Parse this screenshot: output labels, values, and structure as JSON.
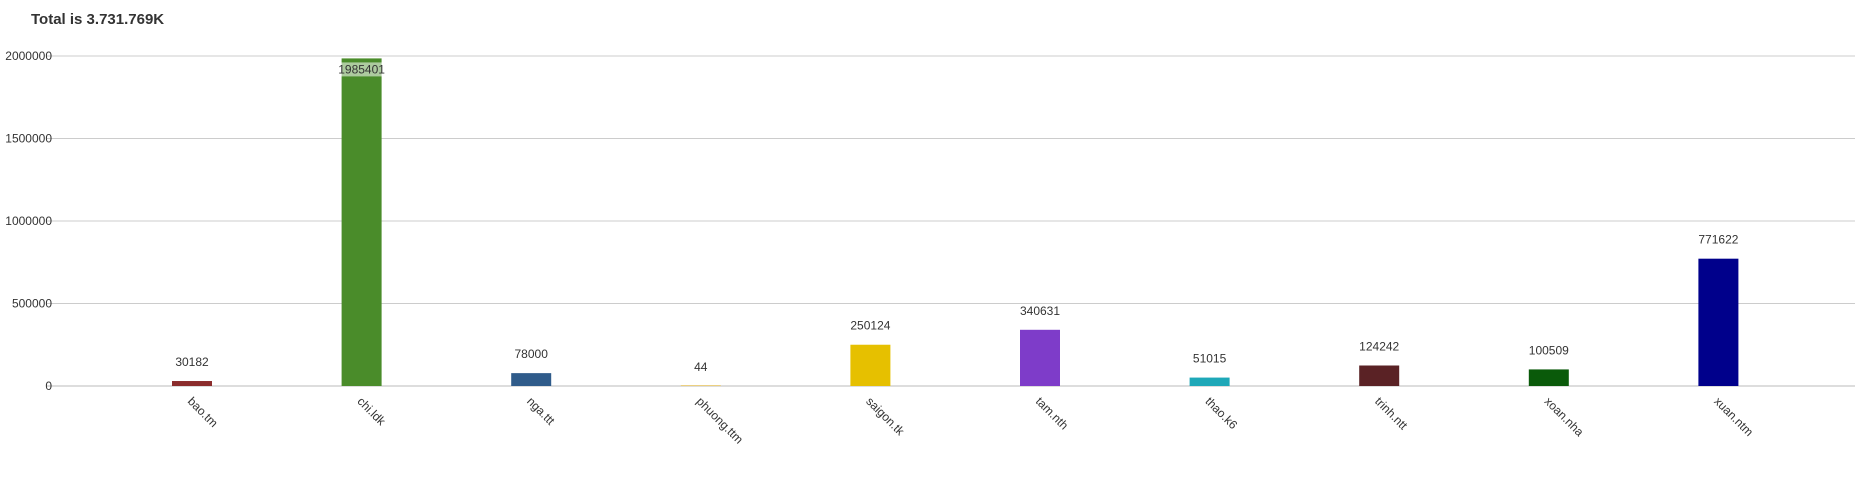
{
  "title": "Total is 3.731.769K",
  "chart_data": {
    "type": "bar",
    "title": "Total is 3.731.769K",
    "xlabel": "",
    "ylabel": "",
    "ylim": [
      0,
      2000000
    ],
    "yticks": [
      0,
      500000,
      1000000,
      1500000,
      2000000
    ],
    "grid": true,
    "categories": [
      "bao.tm",
      "chi.ldk",
      "nga.ttt",
      "phuong.ttm",
      "saigon.tk",
      "tam.nth",
      "thao.k6",
      "trinh.ntt",
      "xoan.nha",
      "xuan.ntm"
    ],
    "values": [
      30182,
      1985401,
      78000,
      44,
      250124,
      340631,
      51015,
      124242,
      100509,
      771622
    ],
    "colors": [
      "#8b2c2c",
      "#4a8c2a",
      "#2f5b8a",
      "#d9a000",
      "#e6c000",
      "#7e3cc9",
      "#1ea8b8",
      "#5a2225",
      "#0a5a0a",
      "#00008b"
    ]
  }
}
